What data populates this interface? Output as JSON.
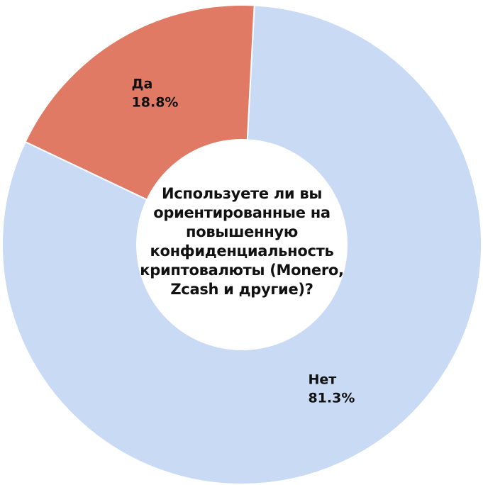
{
  "chart_data": {
    "type": "donut",
    "title": "Используете ли вы ориентированные на повышенную конфиденциальность криптовалюты (Monero, Zcash и другие)?",
    "categories": [
      "Нет",
      "Да"
    ],
    "values": [
      81.3,
      18.8
    ],
    "value_labels": [
      "81.3%",
      "18.8%"
    ],
    "colors": [
      "#c9daf5",
      "#e07a65"
    ]
  }
}
